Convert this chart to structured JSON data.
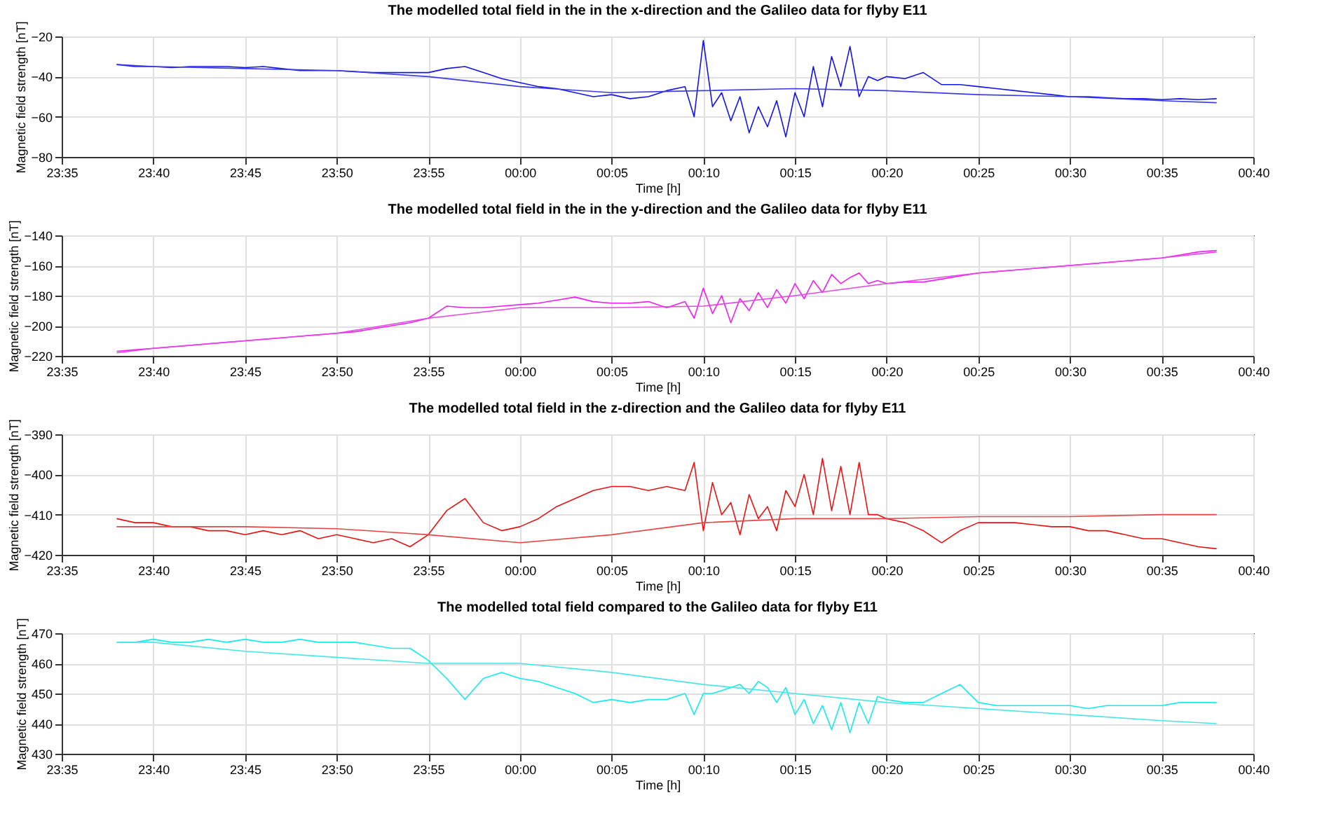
{
  "chart_data": [
    {
      "type": "line",
      "title": "The modelled total field in the in the x-direction and the Galileo data for flyby E11",
      "xlabel": "Time [h]",
      "ylabel": "Magnetic field strength [nT]",
      "grid": true,
      "x": [
        "2000-01-01T23:38",
        "2000-01-01T23:39",
        "2000-01-01T23:40",
        "2000-01-01T23:41",
        "2000-01-01T23:42",
        "2000-01-01T23:43",
        "2000-01-01T23:44",
        "2000-01-01T23:45",
        "2000-01-01T23:46",
        "2000-01-01T23:47",
        "2000-01-01T23:48",
        "2000-01-01T23:49",
        "2000-01-01T23:50",
        "2000-01-01T23:51",
        "2000-01-01T23:52",
        "2000-01-01T23:53",
        "2000-01-01T23:54",
        "2000-01-01T23:55",
        "2000-01-01T23:56",
        "2000-01-01T23:57",
        "2000-01-01T23:58",
        "2000-01-01T23:59",
        "2000-01-02T00:00",
        "2000-01-02T00:01",
        "2000-01-02T00:02",
        "2000-01-02T00:03",
        "2000-01-02T00:04",
        "2000-01-02T00:05",
        "2000-01-02T00:06",
        "2000-01-02T00:07",
        "2000-01-02T00:08",
        "2000-01-02T00:09",
        "2000-01-02T00:09:30",
        "2000-01-02T00:10",
        "2000-01-02T00:10:30",
        "2000-01-02T00:11",
        "2000-01-02T00:11:30",
        "2000-01-02T00:12",
        "2000-01-02T00:12:30",
        "2000-01-02T00:13",
        "2000-01-02T00:13:30",
        "2000-01-02T00:14",
        "2000-01-02T00:14:30",
        "2000-01-02T00:15",
        "2000-01-02T00:15:30",
        "2000-01-02T00:16",
        "2000-01-02T00:16:30",
        "2000-01-02T00:17",
        "2000-01-02T00:17:30",
        "2000-01-02T00:18",
        "2000-01-02T00:18:30",
        "2000-01-02T00:19",
        "2000-01-02T00:19:30",
        "2000-01-02T00:20",
        "2000-01-02T00:21",
        "2000-01-02T00:22",
        "2000-01-02T00:23",
        "2000-01-02T00:24",
        "2000-01-02T00:25",
        "2000-01-02T00:26",
        "2000-01-02T00:27",
        "2000-01-02T00:28",
        "2000-01-02T00:29",
        "2000-01-02T00:30",
        "2000-01-02T00:31",
        "2000-01-02T00:32",
        "2000-01-02T00:33",
        "2000-01-02T00:34",
        "2000-01-02T00:35",
        "2000-01-02T00:36",
        "2000-01-02T00:37",
        "2000-01-02T00:38"
      ],
      "xlim": [
        "2000-01-01T23:35",
        "2000-01-02T00:40"
      ],
      "xticks": [
        {
          "value": "2000-01-01T23:35",
          "label": "23:35"
        },
        {
          "value": "2000-01-01T23:40",
          "label": "23:40"
        },
        {
          "value": "2000-01-01T23:45",
          "label": "23:45"
        },
        {
          "value": "2000-01-01T23:50",
          "label": "23:50"
        },
        {
          "value": "2000-01-01T23:55",
          "label": "23:55"
        },
        {
          "value": "2000-01-02T00:00",
          "label": "00:00"
        },
        {
          "value": "2000-01-02T00:05",
          "label": "00:05"
        },
        {
          "value": "2000-01-02T00:10",
          "label": "00:10"
        },
        {
          "value": "2000-01-02T00:15",
          "label": "00:15"
        },
        {
          "value": "2000-01-02T00:20",
          "label": "00:20"
        },
        {
          "value": "2000-01-02T00:25",
          "label": "00:25"
        },
        {
          "value": "2000-01-02T00:30",
          "label": "00:30"
        },
        {
          "value": "2000-01-02T00:35",
          "label": "00:35"
        },
        {
          "value": "2000-01-02T00:40",
          "label": "00:40"
        }
      ],
      "ylim": [
        -80,
        -20
      ],
      "yticks": [
        -80,
        -60,
        -40,
        -20
      ],
      "series": [
        {
          "color": "#1414e6",
          "values": [
            -34,
            -35,
            -35,
            -35.5,
            -35,
            -35,
            -35,
            -35.5,
            -35,
            -36,
            -37,
            -37,
            -37,
            -37.5,
            -38,
            -38,
            -38,
            -38,
            -36,
            -35,
            -38,
            -41,
            -43,
            -45,
            -46,
            -48,
            -50,
            -49,
            -51,
            -50,
            -47,
            -45,
            -60,
            -22,
            -55,
            -48,
            -62,
            -50,
            -68,
            -55,
            -65,
            -52,
            -70,
            -48,
            -60,
            -35,
            -55,
            -30,
            -45,
            -25,
            -50,
            -40,
            -42,
            -40,
            -41,
            -38,
            -44,
            -44,
            -45,
            -46,
            -47,
            -48,
            -49,
            -50,
            -50,
            -50.5,
            -51,
            -51,
            -51.5,
            -51,
            -51.5,
            -51
          ]
        },
        {
          "color": "#3c3ce6",
          "x": [
            "2000-01-01T23:38",
            "2000-01-01T23:40",
            "2000-01-01T23:45",
            "2000-01-01T23:50",
            "2000-01-01T23:55",
            "2000-01-02T00:00",
            "2000-01-02T00:05",
            "2000-01-02T00:10",
            "2000-01-02T00:15",
            "2000-01-02T00:20",
            "2000-01-02T00:25",
            "2000-01-02T00:30",
            "2000-01-02T00:35",
            "2000-01-02T00:38"
          ],
          "values": [
            -34,
            -35,
            -36,
            -37,
            -40,
            -45,
            -48,
            -47,
            -46,
            -47,
            -49,
            -50,
            -52,
            -53
          ]
        }
      ]
    },
    {
      "type": "line",
      "title": "The modelled total field in the in the y-direction and the Galileo data for flyby E11",
      "xlabel": "Time [h]",
      "ylabel": "Magnetic field strength [nT]",
      "grid": true,
      "x": [
        "2000-01-01T23:38",
        "2000-01-01T23:39",
        "2000-01-01T23:40",
        "2000-01-01T23:41",
        "2000-01-01T23:42",
        "2000-01-01T23:43",
        "2000-01-01T23:44",
        "2000-01-01T23:45",
        "2000-01-01T23:46",
        "2000-01-01T23:47",
        "2000-01-01T23:48",
        "2000-01-01T23:49",
        "2000-01-01T23:50",
        "2000-01-01T23:51",
        "2000-01-01T23:52",
        "2000-01-01T23:53",
        "2000-01-01T23:54",
        "2000-01-01T23:55",
        "2000-01-01T23:56",
        "2000-01-01T23:57",
        "2000-01-01T23:58",
        "2000-01-01T23:59",
        "2000-01-02T00:00",
        "2000-01-02T00:01",
        "2000-01-02T00:02",
        "2000-01-02T00:03",
        "2000-01-02T00:04",
        "2000-01-02T00:05",
        "2000-01-02T00:06",
        "2000-01-02T00:07",
        "2000-01-02T00:08",
        "2000-01-02T00:09",
        "2000-01-02T00:09:30",
        "2000-01-02T00:10",
        "2000-01-02T00:10:30",
        "2000-01-02T00:11",
        "2000-01-02T00:11:30",
        "2000-01-02T00:12",
        "2000-01-02T00:12:30",
        "2000-01-02T00:13",
        "2000-01-02T00:13:30",
        "2000-01-02T00:14",
        "2000-01-02T00:14:30",
        "2000-01-02T00:15",
        "2000-01-02T00:15:30",
        "2000-01-02T00:16",
        "2000-01-02T00:16:30",
        "2000-01-02T00:17",
        "2000-01-02T00:17:30",
        "2000-01-02T00:18",
        "2000-01-02T00:18:30",
        "2000-01-02T00:19",
        "2000-01-02T00:19:30",
        "2000-01-02T00:20",
        "2000-01-02T00:21",
        "2000-01-02T00:22",
        "2000-01-02T00:23",
        "2000-01-02T00:24",
        "2000-01-02T00:25",
        "2000-01-02T00:26",
        "2000-01-02T00:27",
        "2000-01-02T00:28",
        "2000-01-02T00:29",
        "2000-01-02T00:30",
        "2000-01-02T00:31",
        "2000-01-02T00:32",
        "2000-01-02T00:33",
        "2000-01-02T00:34",
        "2000-01-02T00:35",
        "2000-01-02T00:36",
        "2000-01-02T00:37",
        "2000-01-02T00:38"
      ],
      "xlim": [
        "2000-01-01T23:35",
        "2000-01-02T00:40"
      ],
      "xticks": [
        {
          "value": "2000-01-01T23:35",
          "label": "23:35"
        },
        {
          "value": "2000-01-01T23:40",
          "label": "23:40"
        },
        {
          "value": "2000-01-01T23:45",
          "label": "23:45"
        },
        {
          "value": "2000-01-01T23:50",
          "label": "23:50"
        },
        {
          "value": "2000-01-01T23:55",
          "label": "23:55"
        },
        {
          "value": "2000-01-02T00:00",
          "label": "00:00"
        },
        {
          "value": "2000-01-02T00:05",
          "label": "00:05"
        },
        {
          "value": "2000-01-02T00:10",
          "label": "00:10"
        },
        {
          "value": "2000-01-02T00:15",
          "label": "00:15"
        },
        {
          "value": "2000-01-02T00:20",
          "label": "00:20"
        },
        {
          "value": "2000-01-02T00:25",
          "label": "00:25"
        },
        {
          "value": "2000-01-02T00:30",
          "label": "00:30"
        },
        {
          "value": "2000-01-02T00:35",
          "label": "00:35"
        },
        {
          "value": "2000-01-02T00:40",
          "label": "00:40"
        }
      ],
      "ylim": [
        -220,
        -140
      ],
      "yticks": [
        -220,
        -200,
        -180,
        -160,
        -140
      ],
      "series": [
        {
          "color": "#f01ef0",
          "values": [
            -217,
            -216,
            -215,
            -214,
            -213,
            -212,
            -211,
            -210,
            -209,
            -208,
            -207,
            -206,
            -205,
            -204,
            -202,
            -200,
            -198,
            -195,
            -187,
            -188,
            -188,
            -187,
            -186,
            -185,
            -183,
            -181,
            -184,
            -185,
            -185,
            -184,
            -188,
            -184,
            -195,
            -175,
            -192,
            -180,
            -198,
            -182,
            -190,
            -178,
            -188,
            -176,
            -185,
            -172,
            -182,
            -170,
            -178,
            -166,
            -172,
            -168,
            -165,
            -172,
            -170,
            -172,
            -171,
            -171,
            -169,
            -167,
            -165,
            -164,
            -163,
            -162,
            -161,
            -160,
            -159,
            -158,
            -157,
            -156,
            -155,
            -153,
            -151,
            -150
          ]
        },
        {
          "color": "#e646e6",
          "x": [
            "2000-01-01T23:38",
            "2000-01-01T23:40",
            "2000-01-01T23:45",
            "2000-01-01T23:50",
            "2000-01-01T23:55",
            "2000-01-02T00:00",
            "2000-01-02T00:05",
            "2000-01-02T00:10",
            "2000-01-02T00:15",
            "2000-01-02T00:20",
            "2000-01-02T00:25",
            "2000-01-02T00:30",
            "2000-01-02T00:35",
            "2000-01-02T00:38"
          ],
          "values": [
            -218,
            -215,
            -210,
            -205,
            -195,
            -188,
            -188,
            -187,
            -180,
            -172,
            -165,
            -160,
            -155,
            -151
          ]
        }
      ]
    },
    {
      "type": "line",
      "title": "The modelled total field in the z-direction and the Galileo data for flyby E11",
      "xlabel": "Time [h]",
      "ylabel": "Magnetic field strength [nT]",
      "grid": true,
      "x": [
        "2000-01-01T23:38",
        "2000-01-01T23:39",
        "2000-01-01T23:40",
        "2000-01-01T23:41",
        "2000-01-01T23:42",
        "2000-01-01T23:43",
        "2000-01-01T23:44",
        "2000-01-01T23:45",
        "2000-01-01T23:46",
        "2000-01-01T23:47",
        "2000-01-01T23:48",
        "2000-01-01T23:49",
        "2000-01-01T23:50",
        "2000-01-01T23:51",
        "2000-01-01T23:52",
        "2000-01-01T23:53",
        "2000-01-01T23:54",
        "2000-01-01T23:55",
        "2000-01-01T23:56",
        "2000-01-01T23:57",
        "2000-01-01T23:58",
        "2000-01-01T23:59",
        "2000-01-02T00:00",
        "2000-01-02T00:01",
        "2000-01-02T00:02",
        "2000-01-02T00:03",
        "2000-01-02T00:04",
        "2000-01-02T00:05",
        "2000-01-02T00:06",
        "2000-01-02T00:07",
        "2000-01-02T00:08",
        "2000-01-02T00:09",
        "2000-01-02T00:09:30",
        "2000-01-02T00:10",
        "2000-01-02T00:10:30",
        "2000-01-02T00:11",
        "2000-01-02T00:11:30",
        "2000-01-02T00:12",
        "2000-01-02T00:12:30",
        "2000-01-02T00:13",
        "2000-01-02T00:13:30",
        "2000-01-02T00:14",
        "2000-01-02T00:14:30",
        "2000-01-02T00:15",
        "2000-01-02T00:15:30",
        "2000-01-02T00:16",
        "2000-01-02T00:16:30",
        "2000-01-02T00:17",
        "2000-01-02T00:17:30",
        "2000-01-02T00:18",
        "2000-01-02T00:18:30",
        "2000-01-02T00:19",
        "2000-01-02T00:19:30",
        "2000-01-02T00:20",
        "2000-01-02T00:21",
        "2000-01-02T00:22",
        "2000-01-02T00:23",
        "2000-01-02T00:24",
        "2000-01-02T00:25",
        "2000-01-02T00:26",
        "2000-01-02T00:27",
        "2000-01-02T00:28",
        "2000-01-02T00:29",
        "2000-01-02T00:30",
        "2000-01-02T00:31",
        "2000-01-02T00:32",
        "2000-01-02T00:33",
        "2000-01-02T00:34",
        "2000-01-02T00:35",
        "2000-01-02T00:36",
        "2000-01-02T00:37",
        "2000-01-02T00:38"
      ],
      "xlim": [
        "2000-01-01T23:35",
        "2000-01-02T00:40"
      ],
      "xticks": [
        {
          "value": "2000-01-01T23:35",
          "label": "23:35"
        },
        {
          "value": "2000-01-01T23:40",
          "label": "23:40"
        },
        {
          "value": "2000-01-01T23:45",
          "label": "23:45"
        },
        {
          "value": "2000-01-01T23:50",
          "label": "23:50"
        },
        {
          "value": "2000-01-01T23:55",
          "label": "23:55"
        },
        {
          "value": "2000-01-02T00:00",
          "label": "00:00"
        },
        {
          "value": "2000-01-02T00:05",
          "label": "00:05"
        },
        {
          "value": "2000-01-02T00:10",
          "label": "00:10"
        },
        {
          "value": "2000-01-02T00:15",
          "label": "00:15"
        },
        {
          "value": "2000-01-02T00:20",
          "label": "00:20"
        },
        {
          "value": "2000-01-02T00:25",
          "label": "00:25"
        },
        {
          "value": "2000-01-02T00:30",
          "label": "00:30"
        },
        {
          "value": "2000-01-02T00:35",
          "label": "00:35"
        },
        {
          "value": "2000-01-02T00:40",
          "label": "00:40"
        }
      ],
      "ylim": [
        -420,
        -390
      ],
      "yticks": [
        -420,
        -410,
        -400,
        -390
      ],
      "series": [
        {
          "color": "#e61414",
          "values": [
            -411,
            -412,
            -412,
            -413,
            -413,
            -414,
            -414,
            -415,
            -414,
            -415,
            -414,
            -416,
            -415,
            -416,
            -417,
            -416,
            -418,
            -415,
            -409,
            -406,
            -412,
            -414,
            -413,
            -411,
            -408,
            -406,
            -404,
            -403,
            -403,
            -404,
            -403,
            -404,
            -397,
            -414,
            -402,
            -410,
            -407,
            -415,
            -405,
            -411,
            -408,
            -414,
            -404,
            -408,
            -400,
            -410,
            -396,
            -409,
            -398,
            -410,
            -397,
            -410,
            -410,
            -411,
            -412,
            -414,
            -417,
            -414,
            -412,
            -412,
            -412,
            -412.5,
            -413,
            -413,
            -414,
            -414,
            -415,
            -416,
            -416,
            -417,
            -418,
            -418.5
          ]
        },
        {
          "color": "#e64646",
          "x": [
            "2000-01-01T23:38",
            "2000-01-01T23:40",
            "2000-01-01T23:45",
            "2000-01-01T23:50",
            "2000-01-01T23:55",
            "2000-01-02T00:00",
            "2000-01-02T00:05",
            "2000-01-02T00:10",
            "2000-01-02T00:15",
            "2000-01-02T00:20",
            "2000-01-02T00:25",
            "2000-01-02T00:30",
            "2000-01-02T00:35",
            "2000-01-02T00:38"
          ],
          "values": [
            -413,
            -413,
            -413,
            -413.5,
            -415,
            -417,
            -415,
            -412,
            -411,
            -411,
            -410.5,
            -410.5,
            -410,
            -410
          ]
        }
      ]
    },
    {
      "type": "line",
      "title": "The modelled total field compared to the Galileo data for flyby E11",
      "xlabel": "Time [h]",
      "ylabel": "Magnetic field strength [nT]",
      "grid": true,
      "x": [
        "2000-01-01T23:38",
        "2000-01-01T23:39",
        "2000-01-01T23:40",
        "2000-01-01T23:41",
        "2000-01-01T23:42",
        "2000-01-01T23:43",
        "2000-01-01T23:44",
        "2000-01-01T23:45",
        "2000-01-01T23:46",
        "2000-01-01T23:47",
        "2000-01-01T23:48",
        "2000-01-01T23:49",
        "2000-01-01T23:50",
        "2000-01-01T23:51",
        "2000-01-01T23:52",
        "2000-01-01T23:53",
        "2000-01-01T23:54",
        "2000-01-01T23:55",
        "2000-01-01T23:56",
        "2000-01-01T23:57",
        "2000-01-01T23:58",
        "2000-01-01T23:59",
        "2000-01-02T00:00",
        "2000-01-02T00:01",
        "2000-01-02T00:02",
        "2000-01-02T00:03",
        "2000-01-02T00:04",
        "2000-01-02T00:05",
        "2000-01-02T00:06",
        "2000-01-02T00:07",
        "2000-01-02T00:08",
        "2000-01-02T00:09",
        "2000-01-02T00:09:30",
        "2000-01-02T00:10",
        "2000-01-02T00:10:30",
        "2000-01-02T00:11",
        "2000-01-02T00:11:30",
        "2000-01-02T00:12",
        "2000-01-02T00:12:30",
        "2000-01-02T00:13",
        "2000-01-02T00:13:30",
        "2000-01-02T00:14",
        "2000-01-02T00:14:30",
        "2000-01-02T00:15",
        "2000-01-02T00:15:30",
        "2000-01-02T00:16",
        "2000-01-02T00:16:30",
        "2000-01-02T00:17",
        "2000-01-02T00:17:30",
        "2000-01-02T00:18",
        "2000-01-02T00:18:30",
        "2000-01-02T00:19",
        "2000-01-02T00:19:30",
        "2000-01-02T00:20",
        "2000-01-02T00:21",
        "2000-01-02T00:22",
        "2000-01-02T00:23",
        "2000-01-02T00:24",
        "2000-01-02T00:25",
        "2000-01-02T00:26",
        "2000-01-02T00:27",
        "2000-01-02T00:28",
        "2000-01-02T00:29",
        "2000-01-02T00:30",
        "2000-01-02T00:31",
        "2000-01-02T00:32",
        "2000-01-02T00:33",
        "2000-01-02T00:34",
        "2000-01-02T00:35",
        "2000-01-02T00:36",
        "2000-01-02T00:37",
        "2000-01-02T00:38"
      ],
      "xlim": [
        "2000-01-01T23:35",
        "2000-01-02T00:40"
      ],
      "xticks": [
        {
          "value": "2000-01-01T23:35",
          "label": "23:35"
        },
        {
          "value": "2000-01-01T23:40",
          "label": "23:40"
        },
        {
          "value": "2000-01-01T23:45",
          "label": "23:45"
        },
        {
          "value": "2000-01-01T23:50",
          "label": "23:50"
        },
        {
          "value": "2000-01-01T23:55",
          "label": "23:55"
        },
        {
          "value": "2000-01-02T00:00",
          "label": "00:00"
        },
        {
          "value": "2000-01-02T00:05",
          "label": "00:05"
        },
        {
          "value": "2000-01-02T00:10",
          "label": "00:10"
        },
        {
          "value": "2000-01-02T00:15",
          "label": "00:15"
        },
        {
          "value": "2000-01-02T00:20",
          "label": "00:20"
        },
        {
          "value": "2000-01-02T00:25",
          "label": "00:25"
        },
        {
          "value": "2000-01-02T00:30",
          "label": "00:30"
        },
        {
          "value": "2000-01-02T00:35",
          "label": "00:35"
        },
        {
          "value": "2000-01-02T00:40",
          "label": "00:40"
        }
      ],
      "ylim": [
        430,
        470
      ],
      "yticks": [
        430,
        440,
        450,
        460,
        470
      ],
      "series": [
        {
          "color": "#14ebeb",
          "values": [
            467,
            467,
            468,
            467,
            467,
            468,
            467,
            468,
            467,
            467,
            468,
            467,
            467,
            467,
            466,
            465,
            465,
            461,
            455,
            448,
            455,
            457,
            455,
            454,
            452,
            450,
            447,
            448,
            447,
            448,
            448,
            450,
            443,
            450,
            450,
            451,
            452,
            453,
            450,
            454,
            452,
            447,
            452,
            443,
            448,
            440,
            446,
            438,
            447,
            437,
            447,
            440,
            449,
            448,
            447,
            447,
            450,
            453,
            447,
            446,
            446,
            446,
            446,
            446,
            445,
            446,
            446,
            446,
            446,
            447,
            447,
            447
          ]
        },
        {
          "color": "#46e6e6",
          "x": [
            "2000-01-01T23:38",
            "2000-01-01T23:40",
            "2000-01-01T23:45",
            "2000-01-01T23:50",
            "2000-01-01T23:55",
            "2000-01-02T00:00",
            "2000-01-02T00:05",
            "2000-01-02T00:10",
            "2000-01-02T00:15",
            "2000-01-02T00:20",
            "2000-01-02T00:25",
            "2000-01-02T00:30",
            "2000-01-02T00:35",
            "2000-01-02T00:38"
          ],
          "values": [
            467,
            467,
            464,
            462,
            460,
            460,
            457,
            453,
            450,
            447,
            445,
            443,
            441,
            440
          ]
        }
      ]
    }
  ]
}
